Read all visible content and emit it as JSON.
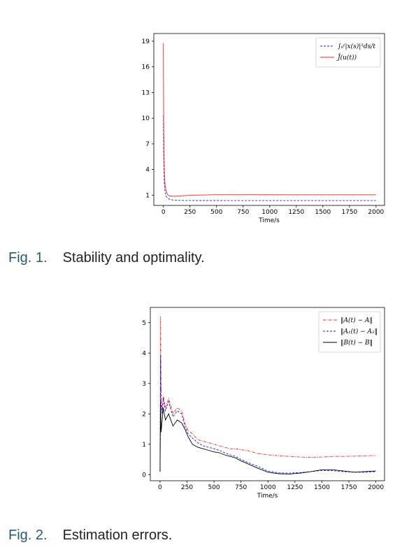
{
  "figures": [
    {
      "caption_num": "Fig. 1.",
      "caption_text": "Stability and optimality."
    },
    {
      "caption_num": "Fig. 2.",
      "caption_text": "Estimation errors."
    }
  ],
  "chart_data": [
    {
      "type": "line",
      "xlabel": "Time/s",
      "ylabel": "",
      "xlim": [
        -90,
        2080
      ],
      "ylim": [
        -0.2,
        19.9
      ],
      "xticks": [
        0,
        250,
        500,
        750,
        1000,
        1250,
        1500,
        1750,
        2000
      ],
      "yticks": [
        1,
        4,
        7,
        10,
        13,
        16,
        19
      ],
      "grid": false,
      "legend_position": "top-right",
      "series": [
        {
          "name": "∫₀ᵗ|x(s)|²ds/t",
          "color": "#1f1fff",
          "style": "dashed",
          "x": [
            0,
            1,
            3,
            6,
            10,
            15,
            25,
            40,
            60,
            100,
            150,
            200,
            300,
            500,
            800,
            1200,
            1600,
            2000
          ],
          "y": [
            10.3,
            8.5,
            5.5,
            3.5,
            2.2,
            1.4,
            0.9,
            0.65,
            0.5,
            0.42,
            0.39,
            0.38,
            0.37,
            0.37,
            0.36,
            0.36,
            0.36,
            0.36
          ]
        },
        {
          "name": "Ĵ(u(t))",
          "color": "#ff2020",
          "style": "solid",
          "x": [
            0,
            1,
            3,
            6,
            10,
            15,
            25,
            40,
            60,
            100,
            150,
            200,
            300,
            500,
            800,
            1200,
            1600,
            2000
          ],
          "y": [
            18.8,
            15.5,
            9.5,
            5.8,
            3.6,
            2.3,
            1.5,
            1.05,
            0.9,
            0.88,
            0.9,
            0.95,
            1.0,
            1.05,
            1.05,
            1.04,
            1.04,
            1.04
          ]
        }
      ]
    },
    {
      "type": "line",
      "xlabel": "Time/s",
      "ylabel": "",
      "xlim": [
        -90,
        2080
      ],
      "ylim": [
        -0.2,
        5.5
      ],
      "xticks": [
        0,
        250,
        500,
        750,
        1000,
        1250,
        1500,
        1750,
        2000
      ],
      "yticks": [
        0,
        1,
        2,
        3,
        4,
        5
      ],
      "grid": false,
      "legend_position": "top-right",
      "series": [
        {
          "name": "‖A(t) − A‖",
          "color": "#ff2020",
          "style": "dashdot",
          "x": [
            0,
            5,
            10,
            20,
            30,
            50,
            80,
            120,
            160,
            200,
            230,
            260,
            300,
            350,
            400,
            450,
            500,
            550,
            600,
            650,
            700,
            750,
            800,
            900,
            1000,
            1100,
            1200,
            1300,
            1400,
            1500,
            1600,
            1700,
            1800,
            1900,
            2000
          ],
          "y": [
            0.2,
            5.2,
            2.5,
            2.1,
            2.6,
            2.2,
            2.5,
            2.0,
            2.2,
            2.1,
            1.7,
            1.45,
            1.35,
            1.15,
            1.1,
            1.05,
            1.0,
            0.95,
            0.9,
            0.85,
            0.85,
            0.82,
            0.8,
            0.7,
            0.65,
            0.62,
            0.6,
            0.58,
            0.57,
            0.58,
            0.6,
            0.6,
            0.61,
            0.62,
            0.63
          ]
        },
        {
          "name": "‖A₁(t) − A₁‖",
          "color": "#1414e6",
          "style": "dashed",
          "x": [
            0,
            5,
            10,
            20,
            30,
            50,
            80,
            120,
            160,
            200,
            230,
            260,
            300,
            350,
            400,
            450,
            500,
            550,
            600,
            650,
            700,
            750,
            800,
            900,
            1000,
            1100,
            1200,
            1300,
            1400,
            1500,
            1600,
            1700,
            1800,
            1900,
            2000
          ],
          "y": [
            0.1,
            3.9,
            2.3,
            2.0,
            2.5,
            2.1,
            2.4,
            1.9,
            2.1,
            2.0,
            1.6,
            1.35,
            1.2,
            1.05,
            0.95,
            0.9,
            0.85,
            0.8,
            0.72,
            0.65,
            0.6,
            0.5,
            0.42,
            0.28,
            0.12,
            0.06,
            0.05,
            0.07,
            0.1,
            0.14,
            0.13,
            0.1,
            0.08,
            0.08,
            0.1
          ]
        },
        {
          "name": "‖B(t) − B‖",
          "color": "#000000",
          "style": "solid",
          "x": [
            0,
            5,
            10,
            20,
            30,
            50,
            80,
            120,
            160,
            200,
            230,
            260,
            300,
            350,
            400,
            450,
            500,
            550,
            600,
            650,
            700,
            750,
            800,
            900,
            1000,
            1100,
            1200,
            1300,
            1400,
            1500,
            1600,
            1700,
            1800,
            1900,
            2000
          ],
          "y": [
            0.1,
            2.4,
            1.4,
            1.8,
            2.2,
            1.8,
            2.0,
            1.6,
            1.8,
            1.7,
            1.5,
            1.25,
            1.0,
            0.9,
            0.85,
            0.8,
            0.75,
            0.72,
            0.65,
            0.6,
            0.55,
            0.45,
            0.38,
            0.22,
            0.08,
            0.03,
            0.02,
            0.05,
            0.1,
            0.16,
            0.16,
            0.12,
            0.08,
            0.1,
            0.12
          ]
        }
      ]
    }
  ]
}
